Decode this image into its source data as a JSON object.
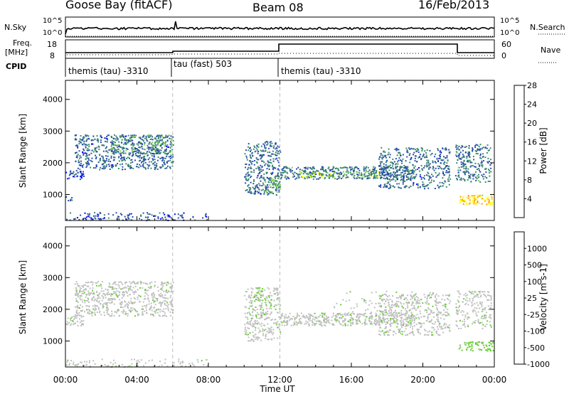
{
  "header": {
    "station": "Goose Bay (fitACF)",
    "beam": "Beam 08",
    "date": "16/Feb/2013"
  },
  "top_panels": {
    "nsky_label": "N.Sky",
    "nsky_ticks": [
      "10^5",
      "10^0"
    ],
    "nsearch_label": "N.Search",
    "freq_label_1": "Freq.",
    "freq_label_2": "[MHz]",
    "freq_ticks": [
      "18",
      "8"
    ],
    "nave_label": "Nave",
    "nave_ticks": [
      "60",
      "0"
    ],
    "cpid_label": "CPID",
    "cpid_segments": [
      {
        "label": "themis (tau) -3310",
        "start_hour": 0
      },
      {
        "label": "tau (fast) 503",
        "start_hour": 6
      },
      {
        "label": "themis (tau) -3310",
        "start_hour": 12
      }
    ]
  },
  "chart_data": [
    {
      "type": "heatmap",
      "title": "",
      "xlabel": "Time UT",
      "ylabel": "Slant Range [km]",
      "x_ticks": [
        "00:00",
        "04:00",
        "08:00",
        "12:00",
        "16:00",
        "20:00",
        "00:00"
      ],
      "y_ticks": [
        "1000",
        "2000",
        "3000",
        "4000"
      ],
      "xlim_hours": [
        0,
        24
      ],
      "ylim_km": [
        180,
        4600
      ],
      "colorbar_label": "Power [dB]",
      "colorbar_ticks": [
        "4",
        "8",
        "12",
        "16",
        "20",
        "24",
        "28"
      ],
      "colors": [
        "#0000ff",
        "#2a4fa8",
        "#3c8c6a",
        "#7fd04a",
        "#ffff00",
        "#ff9a00",
        "#ff0000"
      ],
      "value_range": [
        0,
        30
      ],
      "scatter_regions": [
        {
          "t0": 0.0,
          "t1": 1.0,
          "r0": 1500,
          "r1": 1800,
          "value": 6,
          "density": 0.65
        },
        {
          "t0": 0.0,
          "t1": 0.4,
          "r0": 800,
          "r1": 1000,
          "value": 7,
          "density": 0.5
        },
        {
          "t0": 0.5,
          "t1": 6.0,
          "r0": 1800,
          "r1": 2900,
          "value": 8,
          "density": 0.55
        },
        {
          "t0": 2.5,
          "t1": 6.0,
          "r0": 2300,
          "r1": 2900,
          "value": 11,
          "density": 0.4
        },
        {
          "t0": 10.0,
          "t1": 12.0,
          "r0": 1000,
          "r1": 2700,
          "value": 8,
          "density": 0.5
        },
        {
          "t0": 11.0,
          "t1": 12.0,
          "r0": 1100,
          "r1": 1600,
          "value": 13,
          "density": 0.5
        },
        {
          "t0": 12.0,
          "t1": 19.5,
          "r0": 1500,
          "r1": 1900,
          "value": 9,
          "density": 0.7
        },
        {
          "t0": 13.0,
          "t1": 17.5,
          "r0": 1550,
          "r1": 1750,
          "value": 15,
          "density": 0.4
        },
        {
          "t0": 17.5,
          "t1": 21.5,
          "r0": 1200,
          "r1": 2500,
          "value": 8,
          "density": 0.45
        },
        {
          "t0": 21.8,
          "t1": 23.8,
          "r0": 1400,
          "r1": 2600,
          "value": 9,
          "density": 0.5
        },
        {
          "t0": 22.0,
          "t1": 23.9,
          "r0": 700,
          "r1": 1000,
          "value": 21,
          "density": 0.75
        },
        {
          "t0": 0.0,
          "t1": 8.0,
          "r0": 200,
          "r1": 450,
          "value": 6,
          "density": 0.35
        }
      ]
    },
    {
      "type": "heatmap",
      "title": "",
      "xlabel": "Time UT",
      "ylabel": "Slant Range [km]",
      "x_ticks": [
        "00:00",
        "04:00",
        "08:00",
        "12:00",
        "16:00",
        "20:00",
        "00:00"
      ],
      "y_ticks": [
        "1000",
        "2000",
        "3000",
        "4000"
      ],
      "xlim_hours": [
        0,
        24
      ],
      "ylim_km": [
        180,
        4600
      ],
      "colorbar_label": "Velocity [m s-1]",
      "colorbar_ticks": [
        "1000",
        "500",
        "100",
        "25",
        "-25",
        "-100",
        "-500",
        "-1000"
      ],
      "colors": [
        "#0000ff",
        "#2a4fa8",
        "#3c8c6a",
        "#66cc33",
        "#c0c0c0",
        "#ffa500",
        "#ff6a00",
        "#ff0000"
      ],
      "value_range": [
        -1000,
        1000
      ],
      "scatter_regions": [
        {
          "t0": 0.0,
          "t1": 1.0,
          "r0": 1500,
          "r1": 1800,
          "value": 0,
          "density": 0.65
        },
        {
          "t0": 0.5,
          "t1": 6.0,
          "r0": 1800,
          "r1": 2900,
          "value": 0,
          "density": 0.55
        },
        {
          "t0": 10.0,
          "t1": 12.0,
          "r0": 1000,
          "r1": 2700,
          "value": 0,
          "density": 0.45
        },
        {
          "t0": 10.5,
          "t1": 11.5,
          "r0": 2000,
          "r1": 2700,
          "value": 80,
          "density": 0.2
        },
        {
          "t0": 12.0,
          "t1": 19.5,
          "r0": 1500,
          "r1": 1900,
          "value": 0,
          "density": 0.75
        },
        {
          "t0": 15.0,
          "t1": 21.0,
          "r0": 1800,
          "r1": 2600,
          "value": -150,
          "density": 0.12
        },
        {
          "t0": 17.5,
          "t1": 21.5,
          "r0": 1200,
          "r1": 2500,
          "value": 0,
          "density": 0.4
        },
        {
          "t0": 21.8,
          "t1": 23.8,
          "r0": 1400,
          "r1": 2600,
          "value": 0,
          "density": 0.4
        },
        {
          "t0": 22.0,
          "t1": 23.9,
          "r0": 700,
          "r1": 1000,
          "value": 60,
          "density": 0.6
        },
        {
          "t0": 0.0,
          "t1": 8.0,
          "r0": 200,
          "r1": 450,
          "value": -200,
          "density": 0.25
        }
      ]
    }
  ]
}
